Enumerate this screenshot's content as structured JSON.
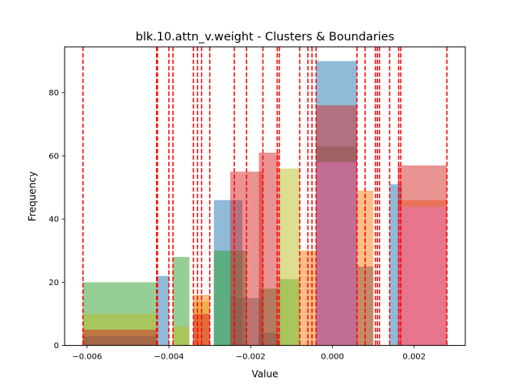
{
  "chart_data": {
    "type": "bar",
    "title": "blk.10.attn_v.weight - Clusters & Boundaries",
    "xlabel": "Value",
    "ylabel": "Frequency",
    "xlim": [
      -0.00655,
      0.00325
    ],
    "ylim": [
      0,
      94.5
    ],
    "x_ticks": [
      -0.006,
      -0.004,
      -0.002,
      0.0,
      0.002
    ],
    "x_tick_labels": [
      "−0.006",
      "−0.004",
      "−0.002",
      "0.000",
      "0.002"
    ],
    "y_ticks": [
      0,
      20,
      40,
      60,
      80
    ],
    "y_tick_labels": [
      "0",
      "20",
      "40",
      "60",
      "80"
    ],
    "grid": false,
    "legend": "none",
    "series": [
      {
        "color": "#1f77b4",
        "bars": [
          {
            "x0": -0.0043,
            "x1": -0.004,
            "value": 22
          },
          {
            "x0": -0.0029,
            "x1": -0.0022,
            "value": 46
          },
          {
            "x0": -0.0004,
            "x1": 0.0006,
            "value": 90
          },
          {
            "x0": 0.0014,
            "x1": 0.0017,
            "value": 51
          }
        ]
      },
      {
        "color": "#2ca02c",
        "bars": [
          {
            "x0": -0.0061,
            "x1": -0.0043,
            "value": 20
          },
          {
            "x0": -0.0039,
            "x1": -0.0035,
            "value": 28
          },
          {
            "x0": -0.0029,
            "x1": -0.0021,
            "value": 30
          },
          {
            "x0": -0.0018,
            "x1": -0.0013,
            "value": 18
          },
          {
            "x0": -0.0013,
            "x1": -0.0008,
            "value": 21
          }
        ]
      },
      {
        "color": "#bcbd22",
        "bars": [
          {
            "x0": -0.0061,
            "x1": -0.0043,
            "value": 10
          },
          {
            "x0": -0.0039,
            "x1": -0.0035,
            "value": 6
          },
          {
            "x0": -0.0034,
            "x1": -0.003,
            "value": 14
          },
          {
            "x0": -0.0013,
            "x1": -0.0008,
            "value": 56
          }
        ]
      },
      {
        "color": "#ff7f0e",
        "bars": [
          {
            "x0": -0.0034,
            "x1": -0.003,
            "value": 16
          },
          {
            "x0": -0.0008,
            "x1": -0.0004,
            "value": 30
          },
          {
            "x0": 0.0006,
            "x1": 0.001,
            "value": 49
          },
          {
            "x0": 0.0016,
            "x1": 0.0028,
            "value": 46
          }
        ]
      },
      {
        "color": "#d62728",
        "bars": [
          {
            "x0": -0.0061,
            "x1": -0.0043,
            "value": 5
          },
          {
            "x0": -0.0034,
            "x1": -0.003,
            "value": 10
          },
          {
            "x0": -0.0025,
            "x1": -0.0017,
            "value": 55
          },
          {
            "x0": -0.0018,
            "x1": -0.0013,
            "value": 61
          },
          {
            "x0": -0.0004,
            "x1": 0.0006,
            "value": 76
          },
          {
            "x0": 0.0016,
            "x1": 0.0028,
            "value": 57
          }
        ]
      },
      {
        "color": "#8c564b",
        "bars": [
          {
            "x0": -0.0061,
            "x1": -0.0043,
            "value": 3
          },
          {
            "x0": -0.0025,
            "x1": -0.0017,
            "value": 15
          },
          {
            "x0": -0.0018,
            "x1": -0.0013,
            "value": 4
          },
          {
            "x0": -0.0004,
            "x1": 0.0006,
            "value": 63
          },
          {
            "x0": 0.0006,
            "x1": 0.001,
            "value": 25
          }
        ]
      },
      {
        "color": "#e377c2",
        "bars": [
          {
            "x0": -0.0004,
            "x1": 0.0006,
            "value": 58
          },
          {
            "x0": 0.0016,
            "x1": 0.0028,
            "value": 44
          }
        ]
      }
    ],
    "boundaries": [
      -0.0061,
      -0.0043,
      -0.00428,
      -0.004,
      -0.0039,
      -0.0034,
      -0.0033,
      -0.0032,
      -0.003,
      -0.0024,
      -0.0021,
      -0.0017,
      -0.00135,
      -0.0013,
      -0.0008,
      -0.0006,
      -0.0005,
      -0.0004,
      0.0006,
      0.0008,
      0.00105,
      0.0011,
      0.00115,
      0.0014,
      0.00162,
      0.00167,
      0.0028
    ],
    "boundary_color": "#ff0000"
  }
}
